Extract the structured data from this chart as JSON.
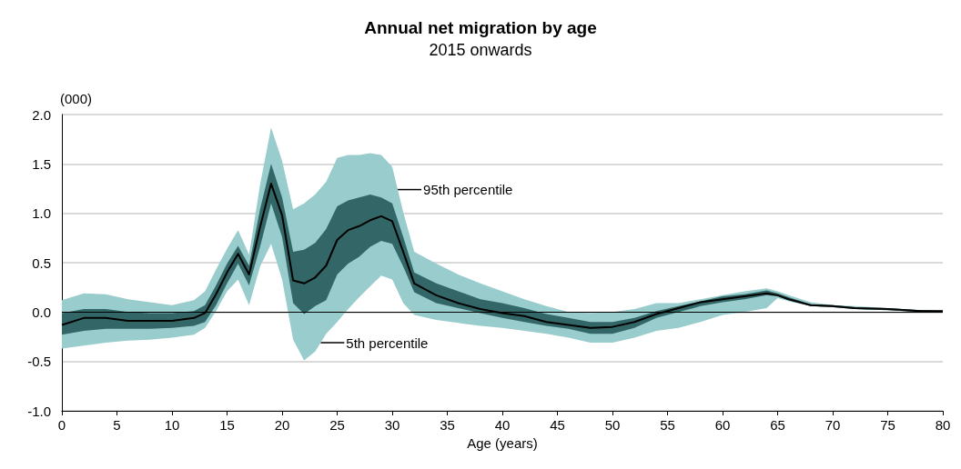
{
  "chart_data": {
    "type": "line",
    "title": "Annual net migration by age",
    "subtitle": "2015 onwards",
    "xlabel": "Age (years)",
    "ylabel": "(000)",
    "x": [
      0,
      2,
      4,
      6,
      8,
      10,
      12,
      13,
      14,
      15,
      16,
      17,
      18,
      19,
      20,
      21,
      22,
      23,
      24,
      25,
      26,
      27,
      28,
      29,
      30,
      31,
      32,
      34,
      36,
      38,
      40,
      42,
      44,
      46,
      48,
      50,
      52,
      54,
      56,
      58,
      60,
      62,
      64,
      65,
      66,
      68,
      70,
      72,
      75,
      78,
      80
    ],
    "series": [
      {
        "type": "area",
        "color": "#99cccc",
        "values": [
          null,
          null,
          null,
          null,
          null,
          null,
          null,
          null,
          null,
          null,
          null,
          null,
          null,
          null,
          null,
          null,
          null,
          null,
          null,
          null,
          null,
          null,
          null,
          null,
          null,
          null,
          null,
          null,
          null,
          null,
          null,
          null,
          null,
          null,
          null,
          null,
          null,
          null,
          null,
          null,
          null,
          null,
          null,
          null,
          null,
          null,
          null,
          null,
          null,
          null,
          null
        ],
        "lower": [
          -0.37,
          -0.34,
          -0.31,
          -0.29,
          -0.28,
          -0.26,
          -0.23,
          -0.16,
          0.01,
          0.21,
          0.33,
          0.07,
          0.46,
          0.69,
          0.33,
          -0.28,
          -0.49,
          -0.4,
          -0.22,
          -0.1,
          0.03,
          0.15,
          0.26,
          0.37,
          0.33,
          0.09,
          -0.03,
          -0.08,
          -0.11,
          -0.14,
          -0.16,
          -0.19,
          -0.22,
          -0.26,
          -0.31,
          -0.31,
          -0.26,
          -0.19,
          -0.16,
          -0.1,
          -0.03,
          0.0,
          0.04,
          0.14,
          0.11,
          0.06,
          0.05,
          0.03,
          0.02,
          0.0,
          0.0
        ],
        "upper": [
          0.12,
          0.19,
          0.18,
          0.13,
          0.1,
          0.07,
          0.12,
          0.21,
          0.43,
          0.64,
          0.83,
          0.58,
          1.29,
          1.87,
          1.53,
          1.04,
          1.1,
          1.19,
          1.32,
          1.56,
          1.59,
          1.59,
          1.61,
          1.59,
          1.47,
          1.01,
          0.61,
          0.49,
          0.38,
          0.29,
          0.21,
          0.13,
          0.06,
          0.0,
          -0.01,
          0.0,
          0.03,
          0.09,
          0.09,
          0.13,
          0.17,
          0.21,
          0.24,
          0.21,
          0.17,
          0.1,
          0.07,
          0.06,
          0.04,
          0.02,
          0.02
        ]
      },
      {
        "type": "area",
        "color": "#336666",
        "values": [
          null,
          null,
          null,
          null,
          null,
          null,
          null,
          null,
          null,
          null,
          null,
          null,
          null,
          null,
          null,
          null,
          null,
          null,
          null,
          null,
          null,
          null,
          null,
          null,
          null,
          null,
          null,
          null,
          null,
          null,
          null,
          null,
          null,
          null,
          null,
          null,
          null,
          null,
          null,
          null,
          null,
          null,
          null,
          null,
          null,
          null,
          null,
          null,
          null,
          null,
          null
        ],
        "lower": [
          -0.23,
          -0.19,
          -0.17,
          -0.17,
          -0.17,
          -0.16,
          -0.14,
          -0.1,
          0.07,
          0.29,
          0.49,
          0.27,
          0.66,
          1.1,
          0.76,
          0.09,
          -0.02,
          0.06,
          0.12,
          0.38,
          0.49,
          0.56,
          0.66,
          0.72,
          0.69,
          0.46,
          0.2,
          0.09,
          0.04,
          -0.01,
          -0.06,
          -0.1,
          -0.14,
          -0.17,
          -0.22,
          -0.22,
          -0.16,
          -0.06,
          0.0,
          0.06,
          0.1,
          0.13,
          0.17,
          0.16,
          0.12,
          0.06,
          0.05,
          0.03,
          0.02,
          0.0,
          0.0
        ],
        "upper": [
          -0.01,
          0.03,
          0.03,
          0.0,
          -0.01,
          -0.01,
          0.01,
          0.07,
          0.27,
          0.49,
          0.67,
          0.47,
          1.04,
          1.5,
          1.16,
          0.61,
          0.63,
          0.7,
          0.84,
          1.07,
          1.13,
          1.16,
          1.19,
          1.16,
          1.1,
          0.76,
          0.4,
          0.29,
          0.21,
          0.13,
          0.09,
          0.04,
          -0.02,
          -0.06,
          -0.1,
          -0.1,
          -0.06,
          0.01,
          0.06,
          0.11,
          0.16,
          0.18,
          0.22,
          0.19,
          0.15,
          0.08,
          0.07,
          0.05,
          0.04,
          0.02,
          0.01
        ]
      },
      {
        "type": "line",
        "color": "#000000",
        "values": [
          -0.13,
          -0.06,
          -0.06,
          -0.09,
          -0.09,
          -0.09,
          -0.06,
          -0.01,
          0.18,
          0.4,
          0.59,
          0.38,
          0.86,
          1.3,
          0.98,
          0.32,
          0.29,
          0.35,
          0.47,
          0.73,
          0.83,
          0.87,
          0.93,
          0.97,
          0.92,
          0.61,
          0.29,
          0.17,
          0.09,
          0.03,
          -0.01,
          -0.04,
          -0.1,
          -0.13,
          -0.16,
          -0.15,
          -0.1,
          -0.02,
          0.04,
          0.1,
          0.13,
          0.16,
          0.19,
          0.17,
          0.13,
          0.07,
          0.06,
          0.04,
          0.03,
          0.01,
          0.01
        ]
      }
    ],
    "xlim": [
      0,
      80
    ],
    "xticks": [
      0,
      5,
      10,
      15,
      20,
      25,
      30,
      35,
      40,
      45,
      50,
      55,
      60,
      65,
      70,
      75,
      80
    ],
    "ylim": [
      -1,
      2
    ],
    "yticks": [
      {
        "value": -1,
        "label": "-1.0"
      },
      {
        "value": -0.5,
        "label": "-0.5"
      },
      {
        "value": 0,
        "label": "0.0"
      },
      {
        "value": 0.5,
        "label": "0.5"
      },
      {
        "value": 1,
        "label": "1.0"
      },
      {
        "value": 1.5,
        "label": "1.5"
      },
      {
        "value": 2,
        "label": "2.0"
      }
    ],
    "ref_lines": [
      {
        "axis": "y",
        "value": 0,
        "color": "#000000"
      }
    ],
    "annotations": [
      {
        "text": "95th percentile",
        "x": 30.5,
        "y": 1.24
      },
      {
        "text": "5th percentile",
        "x": 23.5,
        "y": -0.31
      }
    ],
    "grid": "y",
    "marker": "none",
    "line_style": "solid"
  }
}
